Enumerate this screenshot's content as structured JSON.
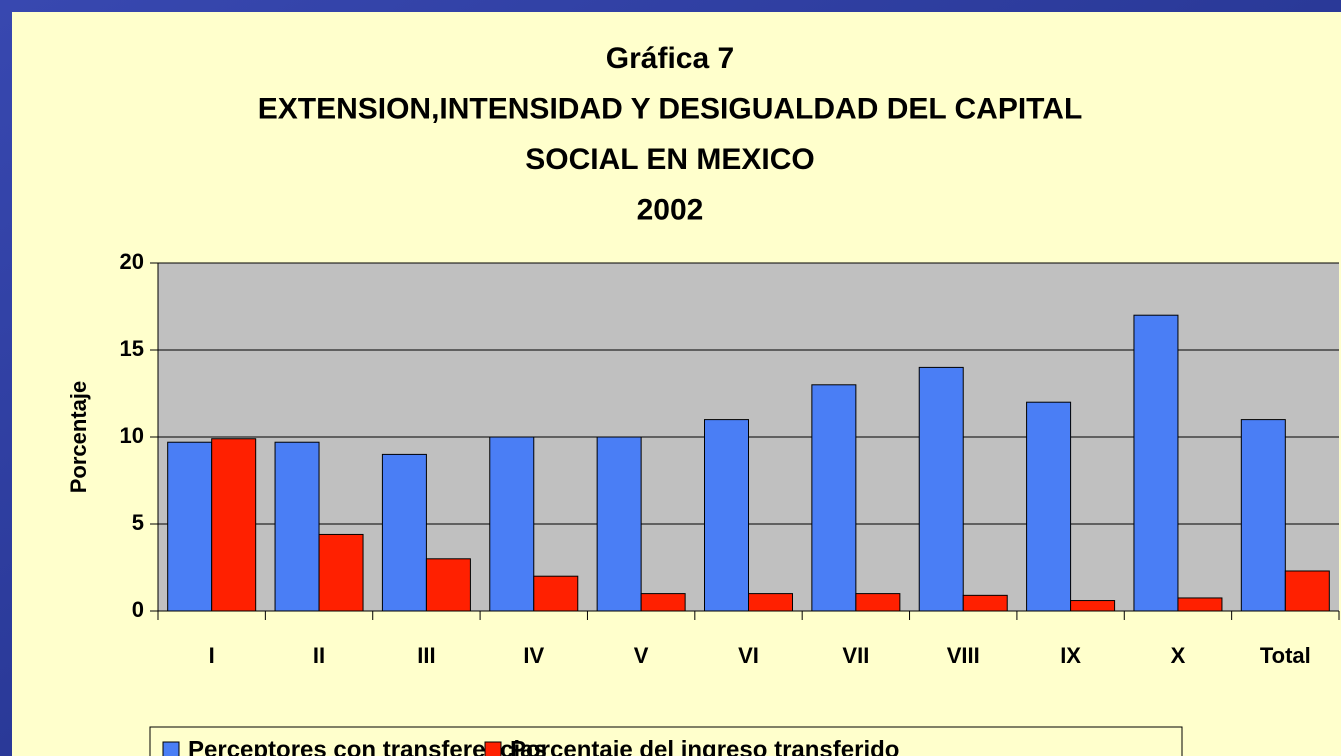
{
  "chart_data": {
    "type": "bar",
    "title": [
      "Gráfica 7",
      "EXTENSION,INTENSIDAD Y DESIGUALDAD DEL CAPITAL",
      "SOCIAL EN MEXICO",
      "2002"
    ],
    "ylabel": "Porcentaje",
    "categories": [
      "I",
      "II",
      "III",
      "IV",
      "V",
      "VI",
      "VII",
      "VIII",
      "IX",
      "X",
      "Total"
    ],
    "series": [
      {
        "name": "Perceptores con transferencias",
        "color": "#4a7ef5",
        "values": [
          9.7,
          9.7,
          9.0,
          10.0,
          10.0,
          11.0,
          13.0,
          14.0,
          12.0,
          17.0,
          11.0
        ]
      },
      {
        "name": "Porcentaje del ingreso transferido",
        "color": "#ff2000",
        "values": [
          9.9,
          4.4,
          3.0,
          2.0,
          1.0,
          1.0,
          1.0,
          0.9,
          0.6,
          0.75,
          2.3
        ]
      }
    ],
    "ylim": [
      0,
      20
    ],
    "yticks": [
      0,
      5,
      10,
      15,
      20
    ],
    "grid": true,
    "legend": "bottom"
  }
}
